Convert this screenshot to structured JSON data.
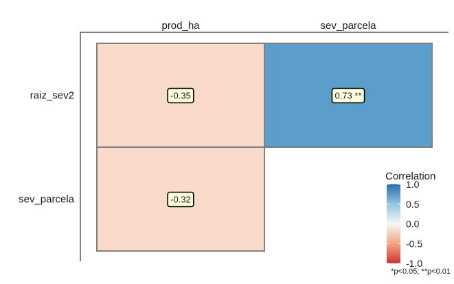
{
  "chart_data": {
    "type": "heatmap",
    "title": "",
    "columns": [
      "prod_ha",
      "sev_parcela"
    ],
    "rows": [
      "raiz_sev2",
      "sev_parcela"
    ],
    "cells": [
      {
        "row": "raiz_sev2",
        "col": "prod_ha",
        "value": -0.35,
        "label": "-0.35",
        "color": "#FADBCB"
      },
      {
        "row": "raiz_sev2",
        "col": "sev_parcela",
        "value": 0.73,
        "label": "0.73 **",
        "color": "#5B9DCB"
      },
      {
        "row": "sev_parcela",
        "col": "prod_ha",
        "value": -0.32,
        "label": "-0.32",
        "color": "#FADBCB"
      }
    ],
    "legend": {
      "title": "Correlation",
      "placement": "right",
      "range": [
        -1,
        1
      ],
      "ticks": [
        {
          "value": 1.0,
          "label": "1.0"
        },
        {
          "value": 0.5,
          "label": "0.5"
        },
        {
          "value": 0.0,
          "label": "0.0"
        },
        {
          "value": -0.5,
          "label": "-0.5"
        },
        {
          "value": -1.0,
          "label": "-1.0"
        }
      ],
      "colors": {
        "low": "#CC3333",
        "mid_low": "#F4A582",
        "mid": "#F7F7F7",
        "mid_high": "#92C5DE",
        "high": "#2C6DB0"
      }
    },
    "note": "*p<0.05; **p<0.01",
    "style": {
      "cell_border": "#7f7f7f",
      "label_bg": "#FFFFE0",
      "axis_line": "#000000"
    }
  }
}
